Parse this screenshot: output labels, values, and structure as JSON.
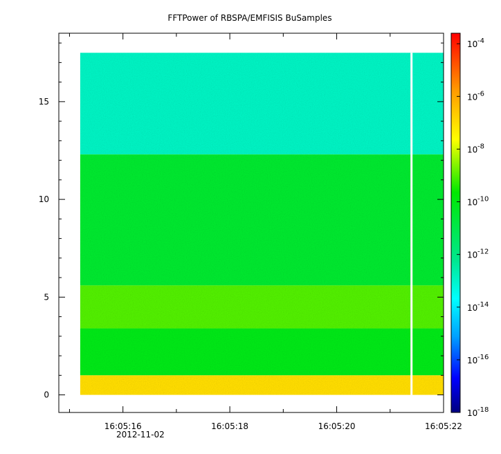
{
  "chart_data": {
    "type": "heatmap",
    "title": "FFTPower of RBSPA/EMFISIS  BuSamples",
    "xlabel": "",
    "ylabel": "",
    "date_label": "2012-11-02",
    "x_range": [
      "16:05:14.8",
      "16:05:22.0"
    ],
    "x_major_ticks": [
      "16:05:16",
      "16:05:18",
      "16:05:20",
      "16:05:22"
    ],
    "x_minor_ticks": [
      "16:05:15",
      "16:05:17",
      "16:05:19",
      "16:05:21"
    ],
    "data_time_range": [
      "16:05:15.2",
      "16:05:22.0"
    ],
    "gap_time": "16:05:21.4",
    "ylim": [
      -0.9,
      18.5
    ],
    "y_ticks": [
      0,
      5,
      10,
      15
    ],
    "freq_max": 17.5,
    "colorbar": {
      "scale": "log",
      "range_exponents": [
        -18,
        -3.6
      ],
      "tick_labels": [
        "10",
        "10",
        "10",
        "10",
        "10",
        "10",
        "10",
        "10"
      ],
      "tick_exponents": [
        "-4",
        "-6",
        "-8",
        "-10",
        "-12",
        "-14",
        "-16",
        "-18"
      ],
      "tick_values_log10": [
        -4,
        -6,
        -8,
        -10,
        -12,
        -14,
        -16,
        -18
      ],
      "colormap": [
        "#00007f",
        "#0000ff",
        "#00a0ff",
        "#00ffff",
        "#00e890",
        "#00e800",
        "#ffff00",
        "#ff9a00",
        "#ff0000"
      ]
    },
    "bands": [
      {
        "f_from": 17.5,
        "f_to": 12.3,
        "log10_power": -12.9
      },
      {
        "f_from": 12.3,
        "f_to": 5.6,
        "log10_power": -10.5
      },
      {
        "f_from": 5.6,
        "f_to": 3.4,
        "log10_power": -9.0
      },
      {
        "f_from": 3.4,
        "f_to": 1.0,
        "log10_power": -10.0
      },
      {
        "f_from": 1.0,
        "f_to": 0.0,
        "log10_power": -7.0
      }
    ],
    "grid": false
  }
}
